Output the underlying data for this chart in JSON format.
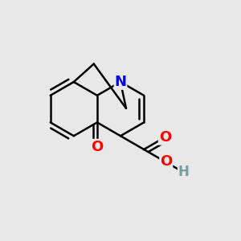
{
  "bg_color": "#e8e8e8",
  "bond_color": "#000000",
  "bond_width": 1.8,
  "N_color": "#0000ff",
  "O_color": "#ff0000",
  "H_color": "#7a9e9e",
  "font_size_atom": 13,
  "fig_size": [
    3.0,
    3.0
  ],
  "dpi": 100,
  "xlim": [
    0.0,
    1.0
  ],
  "ylim": [
    0.0,
    1.0
  ]
}
